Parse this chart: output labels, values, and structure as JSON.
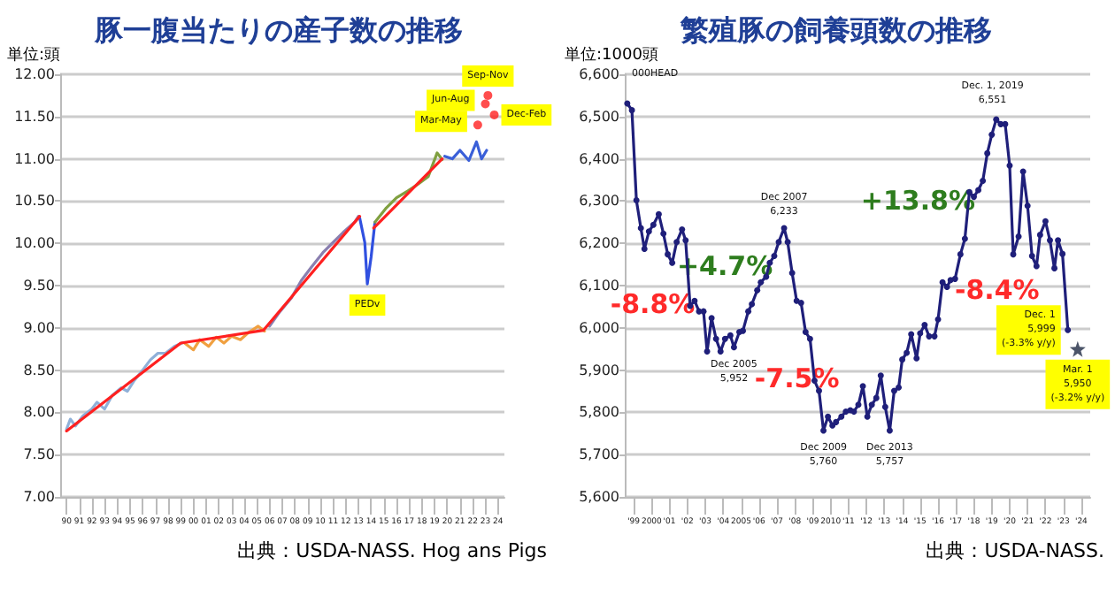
{
  "chart_data": [
    {
      "type": "line",
      "title": "豚一腹当たりの産子数の推移",
      "ylabel": "単位:頭",
      "grid": "y",
      "marker": "none",
      "line_style": "solid",
      "xlim": [
        1989.5,
        2024.5
      ],
      "ylim": [
        7,
        12
      ],
      "xticks": [
        {
          "value": 1990,
          "label": "90"
        },
        {
          "value": 1991,
          "label": "91"
        },
        {
          "value": 1992,
          "label": "92"
        },
        {
          "value": 1993,
          "label": "93"
        },
        {
          "value": 1994,
          "label": "94"
        },
        {
          "value": 1995,
          "label": "95"
        },
        {
          "value": 1996,
          "label": "96"
        },
        {
          "value": 1997,
          "label": "97"
        },
        {
          "value": 1998,
          "label": "98"
        },
        {
          "value": 1999,
          "label": "99"
        },
        {
          "value": 2000,
          "label": "00"
        },
        {
          "value": 2001,
          "label": "01"
        },
        {
          "value": 2002,
          "label": "02"
        },
        {
          "value": 2003,
          "label": "03"
        },
        {
          "value": 2004,
          "label": "04"
        },
        {
          "value": 2005,
          "label": "05"
        },
        {
          "value": 2006,
          "label": "06"
        },
        {
          "value": 2007,
          "label": "07"
        },
        {
          "value": 2008,
          "label": "08"
        },
        {
          "value": 2009,
          "label": "09"
        },
        {
          "value": 2010,
          "label": "10"
        },
        {
          "value": 2011,
          "label": "11"
        },
        {
          "value": 2012,
          "label": "12"
        },
        {
          "value": 2013,
          "label": "13"
        },
        {
          "value": 2014,
          "label": "14"
        },
        {
          "value": 2015,
          "label": "15"
        },
        {
          "value": 2016,
          "label": "16"
        },
        {
          "value": 2017,
          "label": "17"
        },
        {
          "value": 2018,
          "label": "18"
        },
        {
          "value": 2019,
          "label": "19"
        },
        {
          "value": 2020,
          "label": "20"
        },
        {
          "value": 2021,
          "label": "21"
        },
        {
          "value": 2022,
          "label": "22"
        },
        {
          "value": 2023,
          "label": "23"
        },
        {
          "value": 2024,
          "label": "24"
        }
      ],
      "yticks": [
        {
          "value": 7,
          "label": "7.00"
        },
        {
          "value": 7.5,
          "label": "7.50"
        },
        {
          "value": 8,
          "label": "8.00"
        },
        {
          "value": 8.5,
          "label": "8.50"
        },
        {
          "value": 9,
          "label": "9.00"
        },
        {
          "value": 9.5,
          "label": "9.50"
        },
        {
          "value": 10,
          "label": "10.00"
        },
        {
          "value": 10.5,
          "label": "10.50"
        },
        {
          "value": 11,
          "label": "11.00"
        },
        {
          "value": 11.5,
          "label": "11.50"
        },
        {
          "value": 12,
          "label": "12.00"
        }
      ],
      "series": [
        {
          "color": "#8fb0d8",
          "x": [
            1990,
            1990.3,
            1990.7,
            1991.3,
            1992,
            1992.4,
            1993,
            1993.6,
            1994.3,
            1994.8,
            1995.3,
            1996,
            1996.6,
            1997.2,
            1997.8,
            1998.5,
            1999.1
          ],
          "values": [
            7.8,
            7.92,
            7.84,
            7.96,
            8.04,
            8.12,
            8.04,
            8.2,
            8.29,
            8.25,
            8.37,
            8.5,
            8.62,
            8.7,
            8.7,
            8.78,
            8.82
          ]
        },
        {
          "color": "#f0a040",
          "x": [
            1999.3,
            2000,
            2000.5,
            2001.2,
            2001.8,
            2002.4,
            2003,
            2003.7,
            2004.3,
            2005.1,
            2005.6
          ],
          "values": [
            8.82,
            8.74,
            8.86,
            8.78,
            8.89,
            8.82,
            8.9,
            8.86,
            8.94,
            9.02,
            8.96
          ]
        },
        {
          "color": "#8a7fb0",
          "x": [
            2006,
            2006.8,
            2007.7,
            2008.5,
            2009.3,
            2010.2,
            2011,
            2011.8,
            2012.7,
            2013
          ],
          "values": [
            9.02,
            9.19,
            9.35,
            9.56,
            9.72,
            9.89,
            10.01,
            10.13,
            10.25,
            10.32
          ]
        },
        {
          "color": "#3050e0",
          "x": [
            2013.1,
            2013.5,
            2013.7,
            2014,
            2014.3
          ],
          "values": [
            10.3,
            10.01,
            9.52,
            9.84,
            10.25
          ]
        },
        {
          "color": "#80a040",
          "x": [
            2014.3,
            2015.2,
            2016,
            2016.9,
            2017.7,
            2018.5,
            2019.2,
            2019.6
          ],
          "values": [
            10.25,
            10.42,
            10.54,
            10.62,
            10.7,
            10.79,
            11.07,
            10.99
          ]
        },
        {
          "color": "#3a5fd8",
          "x": [
            2019.8,
            2020.4,
            2021,
            2021.7,
            2022.3,
            2022.7,
            2023.1
          ],
          "values": [
            11.03,
            11,
            11.1,
            10.98,
            11.2,
            11,
            11.1
          ]
        },
        {
          "color": "#ff2020",
          "x": [
            1990,
            1999,
            2005.5,
            2013.1,
            null,
            2014.2,
            2019.6
          ],
          "values": [
            7.78,
            8.82,
            8.97,
            10.32,
            null,
            10.18,
            11
          ]
        },
        {
          "type": "scatter",
          "marker": "circle",
          "color": "#ff2020",
          "x": [
            2022.4,
            2023,
            2023.2,
            2023.7
          ],
          "values": [
            11.4,
            11.65,
            11.75,
            11.52
          ]
        }
      ],
      "annotations": [
        {
          "text": "PEDv",
          "x": 2013.7,
          "y": 9.52
        },
        {
          "text": "Mar-May",
          "x": 2022.4,
          "y": 11.4
        },
        {
          "text": "Jun-Aug",
          "x": 2023,
          "y": 11.65
        },
        {
          "text": "Sep-Nov",
          "x": 2023.2,
          "y": 11.75
        },
        {
          "text": "Dec-Feb",
          "x": 2023.7,
          "y": 11.52
        },
        "出典：USDA-NASS. Hog ans Pigs"
      ]
    },
    {
      "type": "line",
      "title": "繁殖豚の飼養頭数の推移",
      "ylabel": "単位:1000頭",
      "grid": "y",
      "marker": "circle",
      "line_style": "solid",
      "xlim": [
        1998.5,
        2024.5
      ],
      "ylim": [
        5600,
        6600
      ],
      "xticks": [
        {
          "value": 1999,
          "label": "'99"
        },
        2000,
        {
          "value": 2001,
          "label": "'01"
        },
        {
          "value": 2002,
          "label": "'02"
        },
        {
          "value": 2003,
          "label": "'03"
        },
        {
          "value": 2004,
          "label": "'04"
        },
        2005,
        {
          "value": 2006,
          "label": "'06"
        },
        {
          "value": 2007,
          "label": "'07"
        },
        {
          "value": 2008,
          "label": "'08"
        },
        {
          "value": 2009,
          "label": "'09"
        },
        2010,
        {
          "value": 2011,
          "label": "'11"
        },
        {
          "value": 2012,
          "label": "'12"
        },
        {
          "value": 2013,
          "label": "'13"
        },
        {
          "value": 2014,
          "label": "'14"
        },
        {
          "value": 2015,
          "label": "'15"
        },
        {
          "value": 2016,
          "label": "'16"
        },
        {
          "value": 2017,
          "label": "'17"
        },
        {
          "value": 2018,
          "label": "'18"
        },
        {
          "value": 2019,
          "label": "'19"
        },
        {
          "value": 2020,
          "label": "'20"
        },
        {
          "value": 2021,
          "label": "'21"
        },
        {
          "value": 2022,
          "label": "'22"
        },
        {
          "value": 2023,
          "label": "'23"
        },
        {
          "value": 2024,
          "label": "'24"
        }
      ],
      "yticks": [
        {
          "value": 5600,
          "label": "5,600"
        },
        {
          "value": 5700,
          "label": "5,700"
        },
        {
          "value": 5800,
          "label": "5,800"
        },
        {
          "value": 5900,
          "label": "5,900"
        },
        {
          "value": 6000,
          "label": "6,000"
        },
        {
          "value": 6100,
          "label": "6,100"
        },
        {
          "value": 6200,
          "label": "6,200"
        },
        {
          "value": 6300,
          "label": "6,300"
        },
        {
          "value": 6400,
          "label": "6,400"
        },
        {
          "value": 6500,
          "label": "6,500"
        },
        {
          "value": 6600,
          "label": "6,600"
        }
      ],
      "series": [
        {
          "color": "#1f1f7a",
          "x": [
            1998.64,
            1998.9,
            1999.15,
            1999.4,
            1999.6,
            1999.85,
            2000.1,
            2000.4,
            2000.66,
            2000.9,
            2001.15,
            2001.4,
            2001.7,
            2001.9,
            2002.15,
            2002.4,
            2002.65,
            2002.9,
            2003.1,
            2003.35,
            2003.6,
            2003.85,
            2004.1,
            2004.4,
            2004.6,
            2004.9,
            2005.1,
            2005.4,
            2005.6,
            2005.9,
            2006.1,
            2006.4,
            2006.6,
            2006.85,
            2007.1,
            2007.4,
            2007.6,
            2007.85,
            2008.1,
            2008.35,
            2008.6,
            2008.85,
            2009.1,
            2009.35,
            2009.6,
            2009.85,
            2010.1,
            2010.3,
            2010.6,
            2010.85,
            2011.1,
            2011.3,
            2011.55,
            2011.8,
            2012.05,
            2012.3,
            2012.55,
            2012.8,
            2013.05,
            2013.3,
            2013.55,
            2013.8,
            2014,
            2014.25,
            2014.5,
            2014.8,
            2015,
            2015.25,
            2015.5,
            2015.8,
            2016,
            2016.25,
            2016.5,
            2016.7,
            2016.95,
            2017.25,
            2017.5,
            2017.75,
            2018,
            2018.25,
            2018.5,
            2018.75,
            2019,
            2019.25,
            2019.5,
            2019.75,
            2020,
            2020.2,
            2020.5,
            2020.75,
            2021,
            2021.25,
            2021.5,
            2021.7,
            2022,
            2022.25,
            2022.5,
            2022.7,
            2022.95,
            2023.25
          ],
          "values": [
            6531,
            6515,
            6302,
            6236,
            6187,
            6228,
            6244,
            6269,
            6223,
            6174,
            6154,
            6203,
            6233,
            6207,
            6052,
            6064,
            6039,
            6039,
            5944,
            6023,
            5974,
            5944,
            5974,
            5982,
            5954,
            5990,
            5993,
            6039,
            6056,
            6089,
            6108,
            6121,
            6154,
            6170,
            6203,
            6236,
            6203,
            6130,
            6064,
            6059,
            5990,
            5974,
            5875,
            5851,
            5757,
            5790,
            5769,
            5777,
            5790,
            5802,
            5805,
            5802,
            5818,
            5862,
            5790,
            5818,
            5834,
            5887,
            5813,
            5757,
            5851,
            5859,
            5925,
            5941,
            5985,
            5928,
            5987,
            6007,
            5980,
            5980,
            6020,
            6108,
            6097,
            6113,
            6116,
            6174,
            6211,
            6321,
            6310,
            6326,
            6348,
            6413,
            6457,
            6493,
            6482,
            6482,
            6384,
            6174,
            6216,
            6370,
            6289,
            6170,
            6146,
            6220,
            6252,
            6207,
            6141,
            6207,
            6175,
            5995
          ]
        },
        {
          "type": "scatter",
          "marker": "star",
          "color": "#1f2a44",
          "x": [
            2023.8
          ],
          "values": [
            5950
          ]
        }
      ],
      "annotations": [
        "000HEAD",
        {
          "text": "Dec 2005\n5,952",
          "x": 2004.6,
          "y": 5954
        },
        {
          "text": "Dec 2007\n6,233",
          "x": 2007.4,
          "y": 6236
        },
        {
          "text": "Dec 2009\n5,760",
          "x": 2009.6,
          "y": 5757
        },
        {
          "text": "Dec 2013\n5,757",
          "x": 2013.3,
          "y": 5757
        },
        "Dec. 1, 2019\n6,551",
        {
          "text": "Dec. 1\n5,999\n(-3.3% y/y)",
          "x": 2023.25,
          "y": 5995
        },
        {
          "text": "Mar. 1\n5,950\n(-3.2% y/y)",
          "x": 2023.8,
          "y": 5950
        },
        "-8.8%",
        "+4.7%",
        "-7.5%",
        "+13.8%",
        "-8.4%",
        "出典：USDA-NASS."
      ]
    }
  ]
}
